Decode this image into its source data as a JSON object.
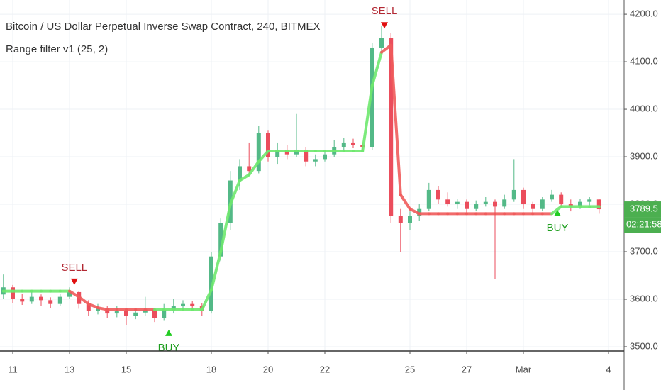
{
  "chart_data": {
    "type": "candlestick",
    "title": "Bitcoin / US Dollar Perpetual Inverse Swap Contract, 240, BITMEX",
    "subtitle": "Range filter v1 (25, 2)",
    "x": [
      10.67,
      11,
      11.33,
      11.67,
      12,
      12.33,
      12.67,
      13,
      13.33,
      13.67,
      14,
      14.33,
      14.67,
      15,
      15.33,
      15.67,
      16,
      16.33,
      16.67,
      17,
      17.33,
      17.67,
      18,
      18.33,
      18.67,
      19,
      19.33,
      19.67,
      20,
      20.33,
      20.67,
      21,
      21.33,
      21.67,
      22,
      22.33,
      22.67,
      23,
      23.33,
      23.67,
      24,
      24.33,
      24.67,
      25,
      25.33,
      25.67,
      26,
      26.33,
      26.67,
      27,
      27.33,
      27.67,
      28,
      28.33,
      28.67,
      29,
      29.33,
      29.67,
      30,
      30.33,
      30.67,
      31,
      31.33,
      31.67
    ],
    "open": [
      3610,
      3625,
      3600,
      3595,
      3605,
      3598,
      3590,
      3605,
      3615,
      3590,
      3575,
      3580,
      3570,
      3575,
      3565,
      3572,
      3578,
      3560,
      3578,
      3585,
      3590,
      3585,
      3575,
      3690,
      3760,
      3850,
      3880,
      3870,
      3950,
      3900,
      3915,
      3905,
      3915,
      3890,
      3895,
      3905,
      3920,
      3930,
      3925,
      3920,
      4130,
      4150,
      3775,
      3760,
      3775,
      3790,
      3830,
      3810,
      3800,
      3805,
      3790,
      3800,
      3805,
      3795,
      3810,
      3830,
      3800,
      3790,
      3810,
      3820,
      3800,
      3795,
      3805,
      3810
    ],
    "high": [
      3652,
      3630,
      3612,
      3615,
      3610,
      3604,
      3612,
      3625,
      3618,
      3598,
      3590,
      3585,
      3585,
      3580,
      3582,
      3605,
      3582,
      3590,
      3600,
      3598,
      3596,
      3592,
      3700,
      3770,
      3870,
      3895,
      3930,
      3965,
      3955,
      3930,
      3925,
      3990,
      3920,
      3905,
      3915,
      3935,
      3940,
      3938,
      3930,
      4140,
      4175,
      4160,
      3790,
      3785,
      3800,
      3845,
      3838,
      3825,
      3812,
      3810,
      3808,
      3815,
      3810,
      3820,
      3895,
      3835,
      3805,
      3815,
      3830,
      3825,
      3810,
      3812,
      3815,
      3812
    ],
    "low": [
      3600,
      3592,
      3588,
      3590,
      3585,
      3582,
      3586,
      3600,
      3580,
      3565,
      3568,
      3560,
      3562,
      3545,
      3558,
      3565,
      3552,
      3556,
      3570,
      3575,
      3578,
      3565,
      3570,
      3680,
      3745,
      3830,
      3860,
      3865,
      3890,
      3885,
      3895,
      3900,
      3880,
      3880,
      3890,
      3900,
      3915,
      3918,
      3912,
      3915,
      4120,
      3760,
      3700,
      3745,
      3765,
      3785,
      3800,
      3795,
      3790,
      3780,
      3785,
      3795,
      3642,
      3790,
      3805,
      3790,
      3780,
      3785,
      3805,
      3795,
      3785,
      3790,
      3798,
      3780
    ],
    "close": [
      3625,
      3600,
      3595,
      3605,
      3598,
      3590,
      3605,
      3615,
      3590,
      3575,
      3580,
      3570,
      3575,
      3565,
      3572,
      3578,
      3560,
      3578,
      3585,
      3590,
      3585,
      3575,
      3690,
      3760,
      3850,
      3880,
      3870,
      3950,
      3900,
      3915,
      3905,
      3915,
      3890,
      3895,
      3905,
      3920,
      3930,
      3925,
      3920,
      4130,
      4150,
      3775,
      3760,
      3775,
      3790,
      3830,
      3810,
      3800,
      3805,
      3790,
      3800,
      3805,
      3795,
      3810,
      3830,
      3800,
      3790,
      3810,
      3820,
      3800,
      3795,
      3805,
      3810,
      3789.5
    ],
    "up_color": "#53b987",
    "down_color": "#eb4d5c",
    "filter": {
      "values": [
        3617,
        3617,
        3617,
        3617,
        3617,
        3617,
        3617,
        3617,
        3605,
        3590,
        3582,
        3578,
        3578,
        3578,
        3578,
        3578,
        3578,
        3578,
        3578,
        3578,
        3578,
        3578,
        3620,
        3700,
        3800,
        3850,
        3862,
        3890,
        3912,
        3912,
        3912,
        3912,
        3912,
        3912,
        3912,
        3912,
        3912,
        3912,
        3912,
        4050,
        4120,
        4135,
        3820,
        3790,
        3780,
        3780,
        3780,
        3780,
        3780,
        3780,
        3780,
        3780,
        3780,
        3780,
        3780,
        3780,
        3780,
        3780,
        3780,
        3795,
        3795,
        3795,
        3795,
        3795
      ],
      "colors": [
        "#6ee86e",
        "#6ee86e",
        "#6ee86e",
        "#6ee86e",
        "#6ee86e",
        "#6ee86e",
        "#6ee86e",
        "#6ee86e",
        "#f05b5b",
        "#f05b5b",
        "#f05b5b",
        "#f05b5b",
        "#f05b5b",
        "#f05b5b",
        "#f05b5b",
        "#f05b5b",
        "#f05b5b",
        "#6ee86e",
        "#6ee86e",
        "#6ee86e",
        "#6ee86e",
        "#6ee86e",
        "#6ee86e",
        "#6ee86e",
        "#6ee86e",
        "#6ee86e",
        "#6ee86e",
        "#6ee86e",
        "#6ee86e",
        "#6ee86e",
        "#6ee86e",
        "#6ee86e",
        "#6ee86e",
        "#6ee86e",
        "#6ee86e",
        "#6ee86e",
        "#6ee86e",
        "#6ee86e",
        "#6ee86e",
        "#6ee86e",
        "#6ee86e",
        "#f05b5b",
        "#f05b5b",
        "#f05b5b",
        "#f05b5b",
        "#f05b5b",
        "#f05b5b",
        "#f05b5b",
        "#f05b5b",
        "#f05b5b",
        "#f05b5b",
        "#f05b5b",
        "#f05b5b",
        "#f05b5b",
        "#f05b5b",
        "#f05b5b",
        "#f05b5b",
        "#f05b5b",
        "#f05b5b",
        "#6ee86e",
        "#6ee86e",
        "#6ee86e",
        "#6ee86e",
        "#6ee86e"
      ]
    },
    "signals": [
      {
        "label": "SELL",
        "x": 13.17,
        "price": 3630,
        "color": "#b22833"
      },
      {
        "label": "BUY",
        "x": 16.5,
        "price": 3536,
        "color": "#1e9e1e"
      },
      {
        "label": "SELL",
        "x": 24.1,
        "price": 4170,
        "color": "#b22833"
      },
      {
        "label": "BUY",
        "x": 30.2,
        "price": 3788,
        "color": "#1e9e1e"
      }
    ],
    "xlim": [
      10.55,
      32.55
    ],
    "xticks": [
      11,
      13,
      15,
      18,
      20,
      22,
      25,
      27,
      {
        "value": 29,
        "label": "Mar"
      },
      {
        "value": 32,
        "label": "4"
      }
    ],
    "ylim": [
      3491,
      4230
    ],
    "yticks": [
      {
        "value": 3500,
        "label": "3500.0"
      },
      {
        "value": 3600,
        "label": "3600.0"
      },
      {
        "value": 3700,
        "label": "3700.0"
      },
      {
        "value": 3800,
        "label": "3800.0"
      },
      {
        "value": 3900,
        "label": "3900.0"
      },
      {
        "value": 4000,
        "label": "4000.0"
      },
      {
        "value": 4100,
        "label": "4100.0"
      },
      {
        "value": 4200,
        "label": "4200.0"
      }
    ],
    "grid": true,
    "countdown": "02:21:58",
    "last_color": "#4caf50"
  }
}
